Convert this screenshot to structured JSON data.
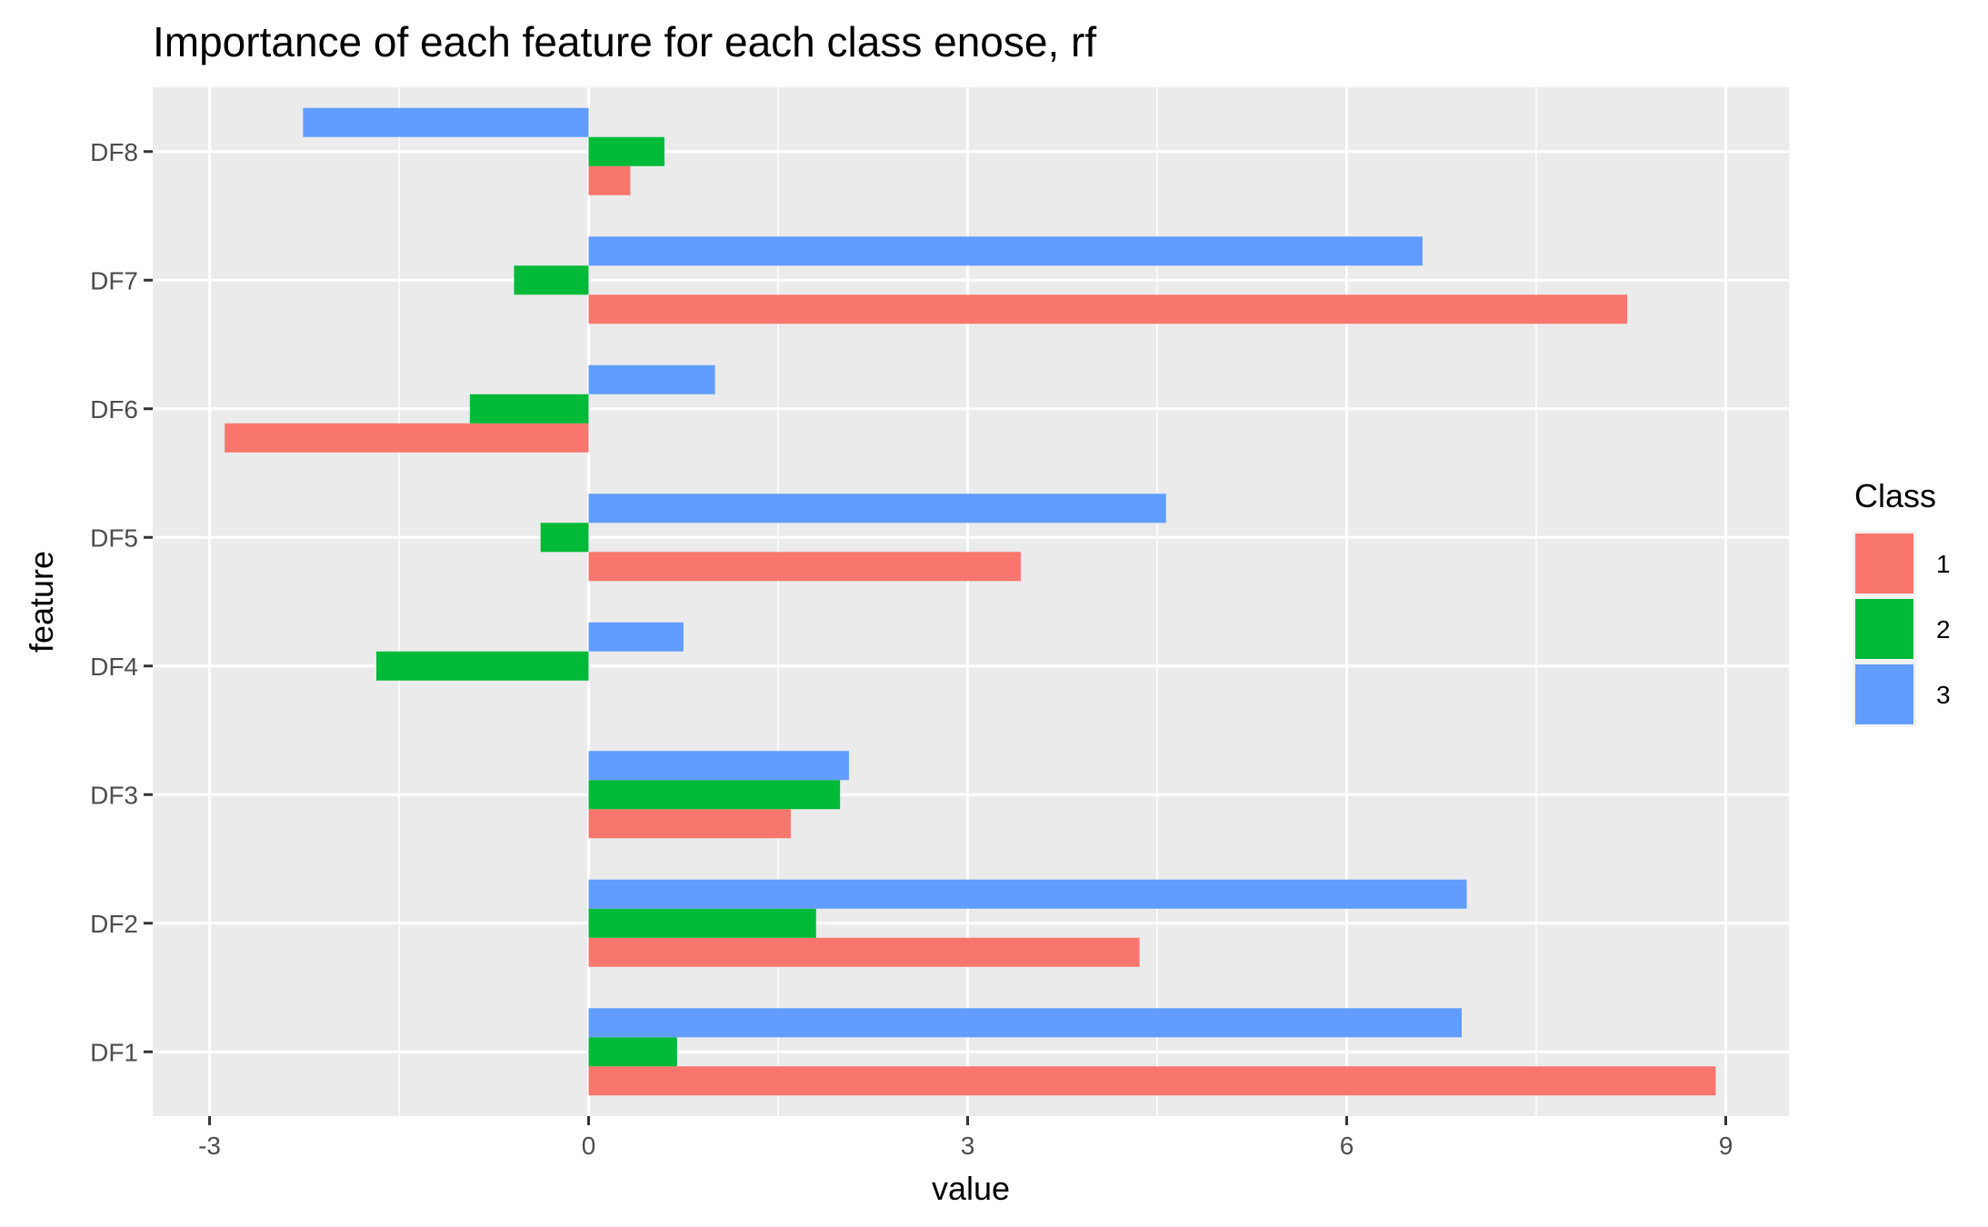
{
  "chart_data": {
    "type": "bar",
    "orientation": "horizontal",
    "title": "Importance of each feature for each class enose, rf",
    "xlabel": "value",
    "ylabel": "feature",
    "categories": [
      "DF1",
      "DF2",
      "DF3",
      "DF4",
      "DF5",
      "DF6",
      "DF7",
      "DF8"
    ],
    "xlim": [
      -3.45,
      9.5
    ],
    "x_ticks": [
      "-3",
      "0",
      "3",
      "6",
      "9"
    ],
    "x_tick_values": [
      -3,
      0,
      3,
      6,
      9
    ],
    "grid": true,
    "legend": {
      "title": "Class",
      "position": "right"
    },
    "series": [
      {
        "name": "1",
        "color": "#F8766D",
        "values": [
          8.92,
          4.36,
          1.6,
          0.0,
          3.42,
          -2.88,
          8.22,
          0.33
        ]
      },
      {
        "name": "2",
        "color": "#00BA38",
        "values": [
          0.7,
          1.8,
          1.99,
          -1.68,
          -0.38,
          -0.94,
          -0.59,
          0.6
        ]
      },
      {
        "name": "3",
        "color": "#619CFF",
        "values": [
          6.91,
          6.95,
          2.06,
          0.75,
          4.57,
          1.0,
          6.6,
          -2.26
        ]
      }
    ]
  }
}
